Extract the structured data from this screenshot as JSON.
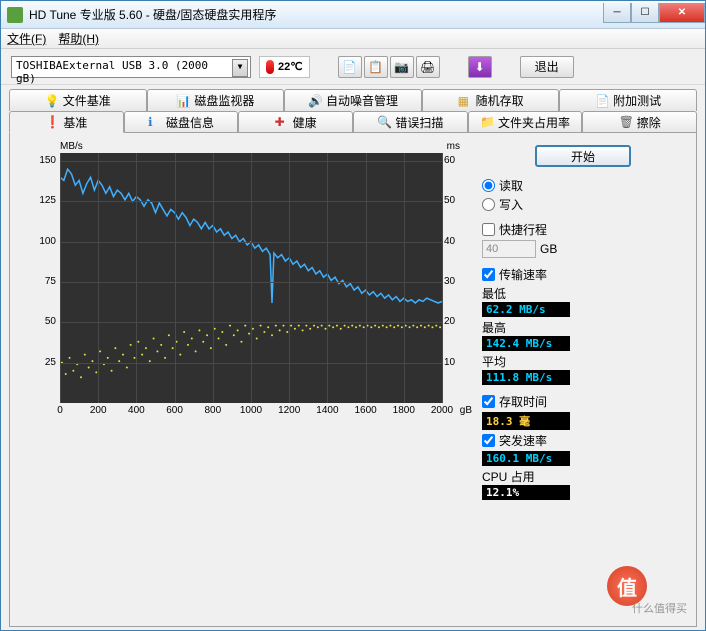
{
  "window": {
    "title": "HD Tune 专业版 5.60 - 硬盘/固态硬盘实用程序"
  },
  "menu": {
    "file": "文件(F)",
    "help": "帮助(H)"
  },
  "toolbar": {
    "drive": "TOSHIBAExternal USB 3.0 (2000 gB)",
    "temp": "22℃",
    "icons": [
      "📄",
      "📋",
      "📷",
      "🖨",
      "⬇"
    ],
    "exit": "退出"
  },
  "tabs_row1": [
    {
      "icon": "💡",
      "label": "文件基准",
      "color": "#e8c030"
    },
    {
      "icon": "📊",
      "label": "磁盘监视器",
      "color": "#40a040"
    },
    {
      "icon": "🔊",
      "label": "自动噪音管理",
      "color": "#e8c030"
    },
    {
      "icon": "▦",
      "label": "随机存取",
      "color": "#d0a030"
    },
    {
      "icon": "📄",
      "label": "附加测试",
      "color": "#5080c0"
    }
  ],
  "tabs_row2": [
    {
      "icon": "❗",
      "label": "基准",
      "color": "#e8c030",
      "active": true
    },
    {
      "icon": "ℹ",
      "label": "磁盘信息",
      "color": "#3080d0"
    },
    {
      "icon": "✚",
      "label": "健康",
      "color": "#d03030"
    },
    {
      "icon": "🔍",
      "label": "错误扫描",
      "color": "#404040"
    },
    {
      "icon": "📁",
      "label": "文件夹占用率",
      "color": "#d0a030"
    },
    {
      "icon": "🗑",
      "label": "擦除",
      "color": "#606060"
    }
  ],
  "chart": {
    "y_left_label": "MB/s",
    "y_right_label": "ms",
    "y_left_ticks": [
      150,
      125,
      100,
      75,
      50,
      25
    ],
    "y_right_ticks": [
      60,
      50,
      40,
      30,
      20,
      10
    ],
    "x_ticks": [
      0,
      200,
      400,
      600,
      800,
      1000,
      1200,
      1400,
      1600,
      1800,
      2000
    ],
    "x_unit": "gB",
    "x_max": 2000,
    "y_left_max": 155,
    "y_right_max": 62,
    "transfer_line_color": "#40b0ff",
    "access_dot_color": "#e0e040",
    "bg_color": "#303030",
    "grid_color": "#484848",
    "transfer_series": [
      [
        0,
        140
      ],
      [
        20,
        138
      ],
      [
        40,
        145
      ],
      [
        60,
        142
      ],
      [
        80,
        135
      ],
      [
        100,
        138
      ],
      [
        120,
        130
      ],
      [
        140,
        136
      ],
      [
        160,
        140
      ],
      [
        180,
        132
      ],
      [
        200,
        138
      ],
      [
        220,
        135
      ],
      [
        240,
        130
      ],
      [
        260,
        134
      ],
      [
        280,
        128
      ],
      [
        300,
        132
      ],
      [
        320,
        130
      ],
      [
        340,
        126
      ],
      [
        360,
        130
      ],
      [
        380,
        125
      ],
      [
        400,
        128
      ],
      [
        420,
        126
      ],
      [
        440,
        122
      ],
      [
        460,
        126
      ],
      [
        480,
        124
      ],
      [
        500,
        118
      ],
      [
        520,
        124
      ],
      [
        540,
        120
      ],
      [
        560,
        116
      ],
      [
        580,
        120
      ],
      [
        600,
        118
      ],
      [
        620,
        114
      ],
      [
        640,
        118
      ],
      [
        660,
        115
      ],
      [
        680,
        110
      ],
      [
        700,
        114
      ],
      [
        720,
        112
      ],
      [
        740,
        108
      ],
      [
        760,
        112
      ],
      [
        780,
        108
      ],
      [
        800,
        110
      ],
      [
        820,
        106
      ],
      [
        840,
        108
      ],
      [
        860,
        104
      ],
      [
        880,
        106
      ],
      [
        900,
        102
      ],
      [
        920,
        104
      ],
      [
        940,
        100
      ],
      [
        960,
        102
      ],
      [
        980,
        98
      ],
      [
        1000,
        100
      ],
      [
        1020,
        96
      ],
      [
        1040,
        98
      ],
      [
        1060,
        94
      ],
      [
        1080,
        96
      ],
      [
        1100,
        92
      ],
      [
        1110,
        62
      ],
      [
        1120,
        93
      ],
      [
        1140,
        90
      ],
      [
        1160,
        92
      ],
      [
        1180,
        88
      ],
      [
        1200,
        90
      ],
      [
        1220,
        86
      ],
      [
        1240,
        88
      ],
      [
        1260,
        84
      ],
      [
        1280,
        86
      ],
      [
        1300,
        82
      ],
      [
        1320,
        84
      ],
      [
        1340,
        80
      ],
      [
        1360,
        82
      ],
      [
        1380,
        78
      ],
      [
        1400,
        80
      ],
      [
        1420,
        76
      ],
      [
        1440,
        78
      ],
      [
        1460,
        74
      ],
      [
        1480,
        76
      ],
      [
        1500,
        72
      ],
      [
        1520,
        74
      ],
      [
        1540,
        70
      ],
      [
        1560,
        72
      ],
      [
        1580,
        68
      ],
      [
        1600,
        70
      ],
      [
        1620,
        67
      ],
      [
        1640,
        69
      ],
      [
        1660,
        66
      ],
      [
        1680,
        68
      ],
      [
        1700,
        65
      ],
      [
        1720,
        67
      ],
      [
        1740,
        64
      ],
      [
        1760,
        66
      ],
      [
        1780,
        63
      ],
      [
        1800,
        65
      ],
      [
        1820,
        63
      ],
      [
        1840,
        64
      ],
      [
        1860,
        62
      ],
      [
        1880,
        64
      ],
      [
        1900,
        63
      ],
      [
        1920,
        65
      ],
      [
        1940,
        64
      ],
      [
        1960,
        63
      ],
      [
        1980,
        62
      ],
      [
        2000,
        63
      ]
    ],
    "access_series": [
      [
        10,
        25
      ],
      [
        30,
        18
      ],
      [
        50,
        28
      ],
      [
        70,
        20
      ],
      [
        90,
        24
      ],
      [
        110,
        16
      ],
      [
        130,
        30
      ],
      [
        150,
        22
      ],
      [
        170,
        26
      ],
      [
        190,
        19
      ],
      [
        210,
        32
      ],
      [
        230,
        24
      ],
      [
        250,
        28
      ],
      [
        270,
        20
      ],
      [
        290,
        34
      ],
      [
        310,
        26
      ],
      [
        330,
        30
      ],
      [
        350,
        22
      ],
      [
        370,
        36
      ],
      [
        390,
        28
      ],
      [
        410,
        38
      ],
      [
        430,
        30
      ],
      [
        450,
        34
      ],
      [
        470,
        26
      ],
      [
        490,
        40
      ],
      [
        510,
        32
      ],
      [
        530,
        36
      ],
      [
        550,
        28
      ],
      [
        570,
        42
      ],
      [
        590,
        34
      ],
      [
        610,
        38
      ],
      [
        630,
        30
      ],
      [
        650,
        44
      ],
      [
        670,
        36
      ],
      [
        690,
        40
      ],
      [
        710,
        32
      ],
      [
        730,
        45
      ],
      [
        750,
        38
      ],
      [
        770,
        42
      ],
      [
        790,
        34
      ],
      [
        810,
        46
      ],
      [
        830,
        40
      ],
      [
        850,
        44
      ],
      [
        870,
        36
      ],
      [
        890,
        48
      ],
      [
        910,
        42
      ],
      [
        930,
        45
      ],
      [
        950,
        38
      ],
      [
        970,
        48
      ],
      [
        990,
        43
      ],
      [
        1010,
        46
      ],
      [
        1030,
        40
      ],
      [
        1050,
        48
      ],
      [
        1070,
        44
      ],
      [
        1090,
        47
      ],
      [
        1110,
        42
      ],
      [
        1130,
        48
      ],
      [
        1150,
        45
      ],
      [
        1170,
        48
      ],
      [
        1190,
        44
      ],
      [
        1210,
        48
      ],
      [
        1230,
        46
      ],
      [
        1250,
        48
      ],
      [
        1270,
        45
      ],
      [
        1290,
        48
      ],
      [
        1310,
        46
      ],
      [
        1330,
        48
      ],
      [
        1350,
        47
      ],
      [
        1370,
        48
      ],
      [
        1390,
        46
      ],
      [
        1410,
        48
      ],
      [
        1430,
        47
      ],
      [
        1450,
        48
      ],
      [
        1470,
        46
      ],
      [
        1490,
        48
      ],
      [
        1510,
        47
      ],
      [
        1530,
        48
      ],
      [
        1550,
        47
      ],
      [
        1570,
        48
      ],
      [
        1590,
        47
      ],
      [
        1610,
        48
      ],
      [
        1630,
        47
      ],
      [
        1650,
        48
      ],
      [
        1670,
        47
      ],
      [
        1690,
        48
      ],
      [
        1710,
        47
      ],
      [
        1730,
        48
      ],
      [
        1750,
        47
      ],
      [
        1770,
        48
      ],
      [
        1790,
        47
      ],
      [
        1810,
        48
      ],
      [
        1830,
        47
      ],
      [
        1850,
        48
      ],
      [
        1870,
        47
      ],
      [
        1890,
        48
      ],
      [
        1910,
        47
      ],
      [
        1930,
        48
      ],
      [
        1950,
        47
      ],
      [
        1970,
        48
      ],
      [
        1990,
        47
      ]
    ]
  },
  "panel": {
    "start": "开始",
    "read": "读取",
    "write": "写入",
    "shortstroke": "快捷行程",
    "gb_val": "40",
    "gb_unit": "GB",
    "transfer_rate": "传输速率",
    "min_label": "最低",
    "min_val": "62.2 MB/s",
    "max_label": "最高",
    "max_val": "142.4 MB/s",
    "avg_label": "平均",
    "avg_val": "111.8 MB/s",
    "access_time": "存取时间",
    "access_val": "18.3 毫",
    "burst_rate": "突发速率",
    "burst_val": "160.1 MB/s",
    "cpu_label": "CPU 占用",
    "cpu_val": "12.1%"
  },
  "watermark": {
    "symbol": "值",
    "text": "什么值得买"
  }
}
